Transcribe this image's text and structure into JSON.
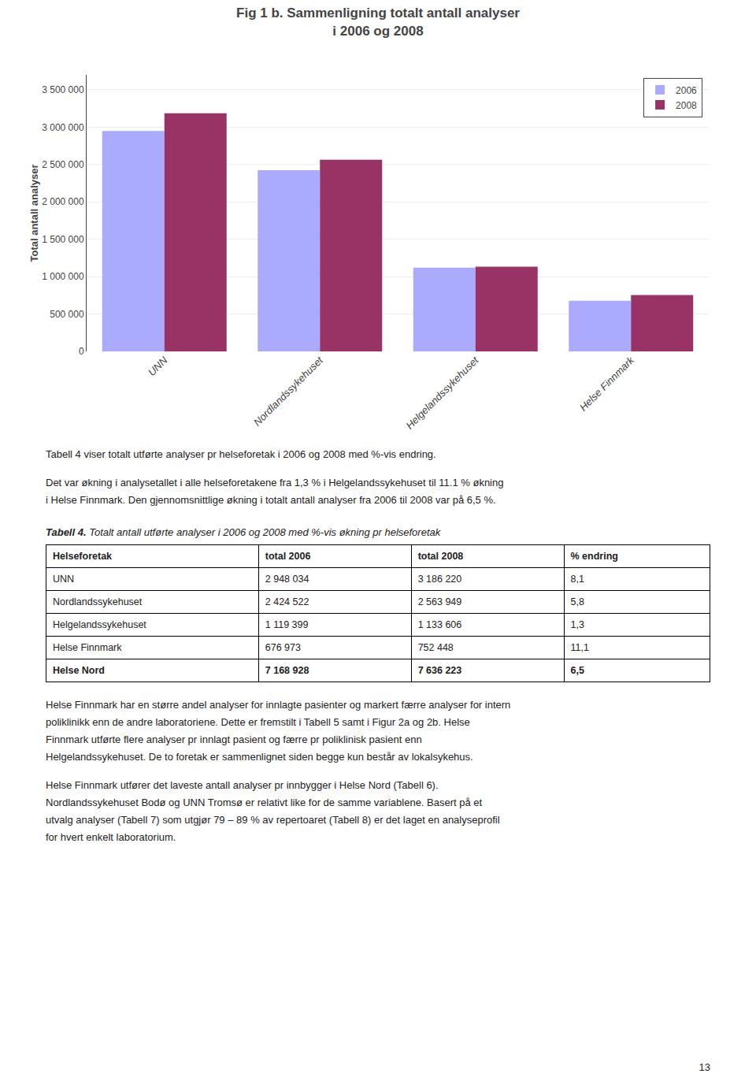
{
  "chart_data": {
    "type": "bar",
    "title": "Fig 1 b. Sammenligning totalt antall analyser",
    "subtitle": "i 2006 og 2008",
    "ylabel": "Total antall analyser",
    "categories": [
      "UNN",
      "Nordlandssykehuset",
      "Helgelandssykehuset",
      "Helse Finnmark"
    ],
    "series": [
      {
        "name": "2006",
        "color": "#aaaaff",
        "values": [
          2948034,
          2424522,
          1119399,
          676973
        ]
      },
      {
        "name": "2008",
        "color": "#993366",
        "values": [
          3186220,
          2563949,
          1133606,
          752448
        ]
      }
    ],
    "ylim": [
      0,
      3700000
    ],
    "yticks": [
      0,
      {
        "value": 500000,
        "label": "500 000"
      },
      {
        "value": 1000000,
        "label": "1 000 000"
      },
      {
        "value": 1500000,
        "label": "1 500 000"
      },
      {
        "value": 2000000,
        "label": "2 000 000"
      },
      {
        "value": 2500000,
        "label": "2 500 000"
      },
      {
        "value": 3000000,
        "label": "3 000 000"
      },
      {
        "value": 3500000,
        "label": "3 500 000"
      }
    ],
    "grid": true,
    "legend": "upper right"
  },
  "page_text": {
    "para1": "Tabell 4 viser totalt utførte analyser pr helseforetak i 2006 og 2008 med %-vis endring.",
    "para2_lines": [
      "Det var økning i analysetallet i alle helseforetakene fra 1,3 % i Helgelandssykehuset til 11.1 % økning",
      "i Helse Finnmark. Den gjennomsnittlige økning i totalt antall analyser fra 2006 til 2008 var på 6,5 %."
    ],
    "caption_bold": "Tabell 4.",
    "caption_rest": " Totalt antall utførte analyser i 2006 og 2008 med %-vis økning pr helseforetak",
    "table_headers": [
      "Helseforetak",
      "total 2006",
      "total 2008",
      "% endring"
    ],
    "table_rows": [
      [
        "UNN",
        "2 948 034",
        "3 186 220",
        "8,1"
      ],
      [
        "Nordlandssykehuset",
        "2 424 522",
        "2 563 949",
        "5,8"
      ],
      [
        "Helgelandssykehuset",
        "1 119 399",
        "1 133 606",
        "1,3"
      ],
      [
        "Helse Finnmark",
        "676 973",
        "752 448",
        "11,1"
      ],
      [
        "Helse Nord",
        "7 168 928",
        "7 636 223",
        "6,5"
      ]
    ],
    "para3_lines": [
      "Helse Finnmark har en større andel analyser for innlagte pasienter og markert færre analyser for intern",
      "poliklinikk enn de andre laboratoriene. Dette er fremstilt i Tabell 5 samt i Figur 2a og 2b. Helse",
      "Finnmark utførte flere analyser pr innlagt pasient og færre pr poliklinisk pasient enn",
      "Helgelandssykehuset. De to foretak er sammenlignet siden begge kun består av lokalsykehus."
    ],
    "para4_lines": [
      "Helse Finnmark utfører det laveste antall analyser pr innbygger i Helse Nord (Tabell 6).",
      "Nordlandssykehuset Bodø og UNN Tromsø er relativt like for de samme variablene. Basert på et",
      "utvalg analyser (Tabell 7) som utgjør 79 – 89 % av repertoaret (Tabell 8) er det laget en analyseprofil",
      "for hvert enkelt laboratorium."
    ],
    "page_number": "13"
  }
}
